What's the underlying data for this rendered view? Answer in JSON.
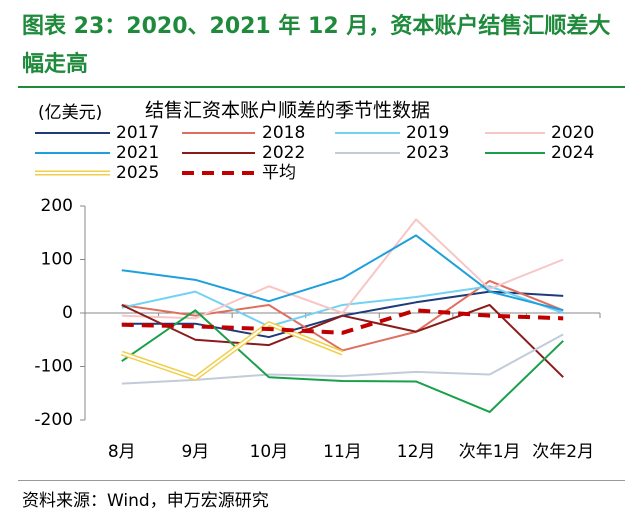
{
  "header": {
    "title": "图表 23：2020、2021 年 12 月，资本账户结售汇顺差大幅走高"
  },
  "chart_data": {
    "type": "line",
    "unit": "(亿美元)",
    "title": "结售汇资本账户顺差的季节性数据",
    "categories": [
      "8月",
      "9月",
      "10月",
      "11月",
      "12月",
      "次年1月",
      "次年2月"
    ],
    "ylim": [
      -200,
      200
    ],
    "yticks": [
      -200,
      -100,
      0,
      100,
      200
    ],
    "series": [
      {
        "name": "2017",
        "color": "#1f3a7a",
        "values": [
          -20,
          -20,
          -45,
          -5,
          20,
          40,
          32
        ]
      },
      {
        "name": "2018",
        "color": "#e06e5e",
        "values": [
          15,
          -5,
          15,
          -70,
          -35,
          60,
          5
        ]
      },
      {
        "name": "2019",
        "color": "#72d2f2",
        "values": [
          10,
          40,
          -25,
          15,
          30,
          50,
          0
        ]
      },
      {
        "name": "2020",
        "color": "#f7c6c6",
        "values": [
          -5,
          -10,
          50,
          0,
          175,
          45,
          100
        ]
      },
      {
        "name": "2021",
        "color": "#1ea0dc",
        "values": [
          80,
          62,
          22,
          65,
          145,
          40,
          5
        ]
      },
      {
        "name": "2022",
        "color": "#8b1a1a",
        "values": [
          15,
          -50,
          -60,
          -5,
          -35,
          15,
          -120
        ]
      },
      {
        "name": "2023",
        "color": "#c2ccd9",
        "values": [
          -132,
          -125,
          -115,
          -118,
          -110,
          -115,
          -40
        ]
      },
      {
        "name": "2024",
        "color": "#1aa04a",
        "values": [
          -90,
          5,
          -120,
          -127,
          -128,
          -185,
          -52
        ]
      },
      {
        "name": "2025",
        "color": "#f0cf4a",
        "double": true,
        "values": [
          -75,
          -122,
          -20,
          -75,
          null,
          null,
          null
        ]
      },
      {
        "name": "平均",
        "color": "#c00000",
        "dashed": true,
        "values": [
          -22,
          -25,
          -30,
          -37,
          5,
          -5,
          -10
        ]
      }
    ]
  },
  "footer": {
    "source": "资料来源：Wind，申万宏源研究"
  }
}
